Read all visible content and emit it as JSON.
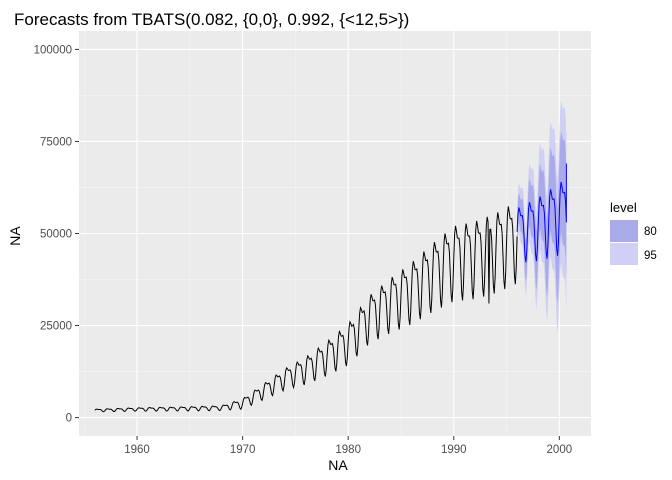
{
  "chart_data": {
    "type": "line",
    "title": "Forecasts from TBATS(0.082, {0,0}, 0.992, {<12,5>})",
    "xlabel": "NA",
    "ylabel": "NA",
    "xlim": [
      1954.5,
      2003.0
    ],
    "ylim": [
      -5000,
      105000
    ],
    "x_ticks": [
      1960,
      1970,
      1980,
      1990,
      2000
    ],
    "x_tick_labels": [
      "1960",
      "1970",
      "1980",
      "1990",
      "2000"
    ],
    "y_ticks": [
      0,
      25000,
      50000,
      75000,
      100000
    ],
    "y_tick_labels": [
      "0",
      "25000",
      "50000",
      "75000",
      "100000"
    ],
    "grid": true,
    "legend": {
      "title": "level",
      "position": "right",
      "entries": [
        {
          "label": "80",
          "color": "#aaaaea"
        },
        {
          "label": "95",
          "color": "#d0d0f4"
        }
      ]
    },
    "colors": {
      "panel": "#ebebeb",
      "grid_major": "#ffffff",
      "grid_minor": "#f5f5f5",
      "observed_line": "#000000",
      "forecast_line": "#0000ff",
      "band_80": "#aaaaea",
      "band_95": "#d0d0f4"
    },
    "seasonal_period": 12,
    "observed": {
      "name": "observed",
      "start": 1956.0,
      "end": 1996.0,
      "trend_x": [
        1956,
        1960,
        1965,
        1968,
        1970,
        1972,
        1974,
        1976,
        1978,
        1980,
        1982,
        1984,
        1986,
        1988,
        1990,
        1992,
        1994,
        1996
      ],
      "trend_y": [
        2000,
        2300,
        2500,
        2700,
        4000,
        7500,
        11000,
        13500,
        17000,
        21000,
        28000,
        32000,
        35500,
        40000,
        44000,
        45000,
        47000,
        50000
      ],
      "amplitude_x": [
        1956,
        1968,
        1970,
        1975,
        1980,
        1985,
        1990,
        1996
      ],
      "amplitude_y": [
        400,
        700,
        1500,
        3500,
        6000,
        8500,
        11000,
        12000
      ],
      "notable_points": [
        {
          "x": 1993.3,
          "y": 31000
        }
      ]
    },
    "forecast": {
      "name": "forecast",
      "start": 1996.0,
      "end": 2000.67,
      "trend_x": [
        1996,
        1998,
        2000.67
      ],
      "trend_y": [
        51000,
        53000,
        57000
      ],
      "amplitude_x": [
        1996,
        2000.67
      ],
      "amplitude_y": [
        8000,
        11000
      ],
      "band_80_halfwidth_x": [
        1996,
        2000.67
      ],
      "band_80_halfwidth_y": [
        3500,
        15000
      ],
      "band_95_halfwidth_x": [
        1996,
        2000.67
      ],
      "band_95_halfwidth_y": [
        6000,
        24000
      ],
      "last_value": 69000
    }
  }
}
